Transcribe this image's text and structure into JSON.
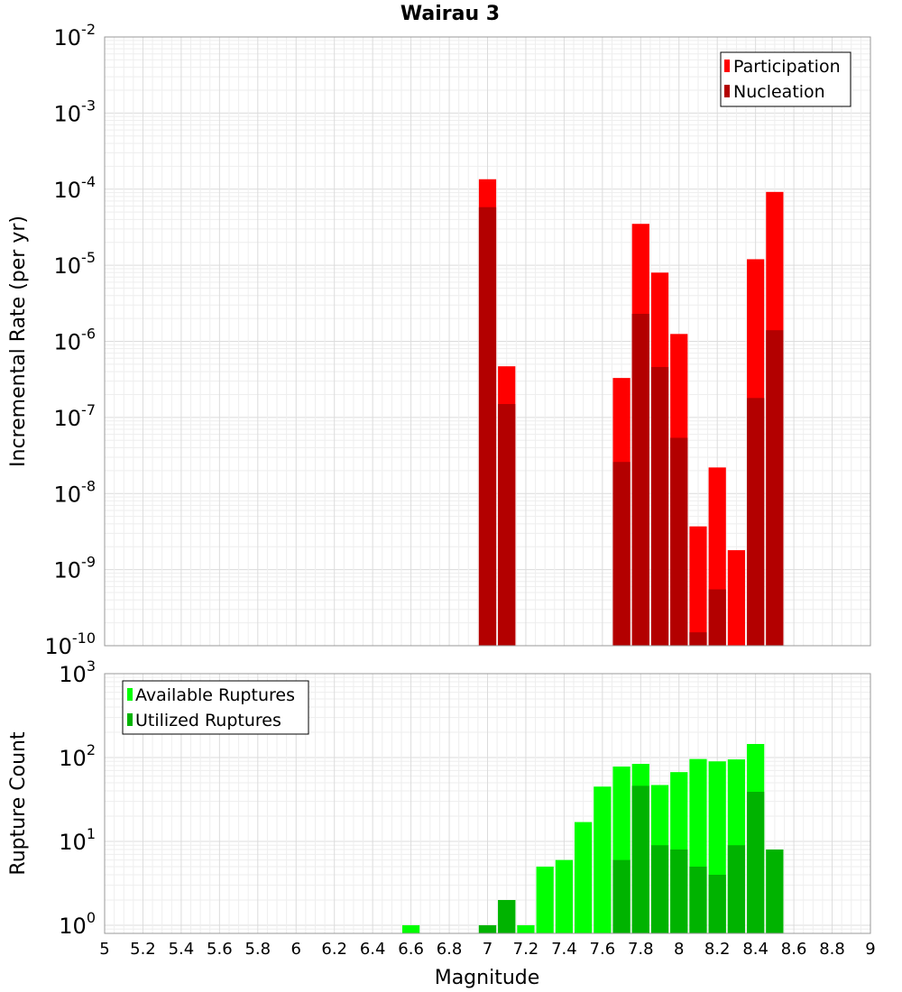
{
  "chart_data": [
    {
      "type": "bar",
      "title": "Wairau 3",
      "xlabel": "",
      "ylabel": "Incremental Rate (per yr)",
      "yscale": "log",
      "ylim": [
        1e-10,
        0.01
      ],
      "xlim": [
        5,
        9
      ],
      "grid": true,
      "legend_position": "top-right",
      "bin_width": 0.1,
      "x": [
        7.0,
        7.1,
        7.7,
        7.8,
        7.9,
        8.0,
        8.1,
        8.2,
        8.3,
        8.4,
        8.5
      ],
      "series": [
        {
          "name": "Participation",
          "color": "#ff0000",
          "values": [
            0.000135,
            4.7e-07,
            3.3e-07,
            3.5e-05,
            8e-06,
            1.25e-06,
            3.7e-09,
            2.2e-08,
            1.8e-09,
            1.2e-05,
            9.2e-05
          ]
        },
        {
          "name": "Nucleation",
          "color": "#b30000",
          "values": [
            5.8e-05,
            1.5e-07,
            2.6e-08,
            2.3e-06,
            4.6e-07,
            5.4e-08,
            1.5e-10,
            5.5e-10,
            null,
            1.8e-07,
            1.4e-06
          ]
        }
      ],
      "tick_labels": [
        "10^-2",
        "10^-3",
        "10^-4",
        "10^-5",
        "10^-6",
        "10^-7",
        "10^-8",
        "10^-9",
        "10^-10"
      ]
    },
    {
      "type": "bar",
      "title": "",
      "xlabel": "Magnitude",
      "ylabel": "Rupture Count",
      "yscale": "log",
      "ylim": [
        0.8,
        1000
      ],
      "xlim": [
        5,
        9
      ],
      "grid": true,
      "legend_position": "top-left",
      "bin_width": 0.1,
      "x": [
        6.6,
        7.0,
        7.1,
        7.2,
        7.3,
        7.4,
        7.5,
        7.6,
        7.7,
        7.8,
        7.9,
        8.0,
        8.1,
        8.2,
        8.3,
        8.4,
        8.5
      ],
      "series": [
        {
          "name": "Available Ruptures",
          "color": "#00ff00",
          "values": [
            1,
            1,
            2,
            1,
            5,
            6,
            17,
            45,
            78,
            84,
            47,
            67,
            96,
            90,
            95,
            145,
            8
          ]
        },
        {
          "name": "Utilized Ruptures",
          "color": "#00b300",
          "values": [
            null,
            1,
            2,
            null,
            null,
            null,
            null,
            null,
            6,
            46,
            9,
            8,
            5,
            4,
            9,
            39,
            8
          ]
        }
      ],
      "y_tick_labels": [
        "10^3",
        "10^2",
        "10^1",
        "10^0"
      ],
      "x_tick_labels": [
        "5",
        "5.2",
        "5.4",
        "5.6",
        "5.8",
        "6",
        "6.2",
        "6.4",
        "6.6",
        "6.8",
        "7",
        "7.2",
        "7.4",
        "7.6",
        "7.8",
        "8",
        "8.2",
        "8.4",
        "8.6",
        "8.8",
        "9"
      ]
    }
  ]
}
